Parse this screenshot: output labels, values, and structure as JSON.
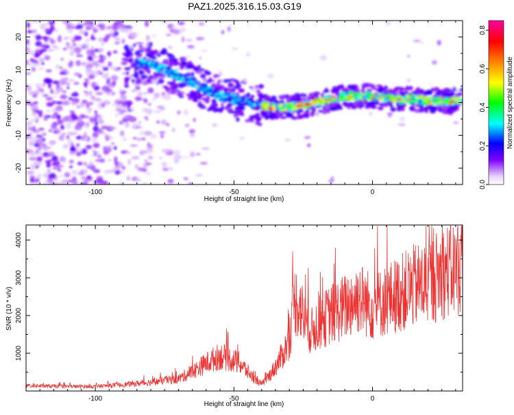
{
  "title": "PAZ1.2025.316.15.03.G19",
  "chart_data": [
    {
      "type": "heatmap",
      "xlabel": "Height of straight line (km)",
      "ylabel": "Frequency (Hz)",
      "xlim": [
        -125,
        32.5
      ],
      "ylim": [
        -25,
        25
      ],
      "xticks": [
        -100,
        -50,
        0
      ],
      "yticks": [
        -20,
        -10,
        0,
        10,
        20
      ],
      "colorbar": {
        "label": "Normalized spectral amplitude",
        "range": [
          0,
          0.85
        ],
        "ticks": [
          "0.0",
          "0.2",
          "0.4",
          "0.6",
          "0.8"
        ],
        "tick_values": [
          0,
          0.2,
          0.4,
          0.6,
          0.8
        ],
        "colors": [
          "#ffffff",
          "#7f00ff",
          "#0000ff",
          "#00ffff",
          "#00ff00",
          "#ffff00",
          "#ff8000",
          "#ff0000",
          "#ff00a0"
        ]
      },
      "ridge": {
        "x": [
          -80,
          -70,
          -60,
          -55,
          -50,
          -45,
          -40,
          -35,
          -30,
          -25,
          -20,
          -15,
          -10,
          -5,
          0,
          5,
          10,
          15,
          20,
          25,
          30
        ],
        "freq": [
          12,
          8,
          4,
          2,
          1,
          0,
          -1,
          -1.5,
          -1.5,
          -1,
          0,
          1,
          2,
          2,
          2,
          1.5,
          1,
          1,
          0.5,
          0.5,
          0.5
        ]
      }
    },
    {
      "type": "line",
      "xlabel": "Height of straight line (km)",
      "ylabel": "SNR (10 * v/v)",
      "xlim": [
        -125,
        32.5
      ],
      "ylim": [
        0,
        4400
      ],
      "xticks": [
        -100,
        -50,
        0
      ],
      "yticks": [
        1000,
        2000,
        3000,
        4000
      ],
      "color": "#ee3333",
      "envelope": {
        "x": [
          -125,
          -110,
          -100,
          -90,
          -80,
          -70,
          -65,
          -60,
          -55,
          -51,
          -48,
          -45,
          -42,
          -40,
          -38,
          -35,
          -32,
          -30,
          -28,
          -26,
          -24,
          -22,
          -20,
          -15,
          -10,
          -5,
          0,
          5,
          10,
          15,
          20,
          25,
          30,
          32.5
        ],
        "y": [
          150,
          130,
          130,
          180,
          250,
          350,
          550,
          800,
          1000,
          900,
          800,
          550,
          300,
          200,
          350,
          700,
          1100,
          1500,
          2600,
          2400,
          1900,
          1700,
          1900,
          2200,
          2400,
          2700,
          2400,
          2600,
          2800,
          3000,
          3100,
          3400,
          3500,
          3600
        ]
      }
    }
  ]
}
